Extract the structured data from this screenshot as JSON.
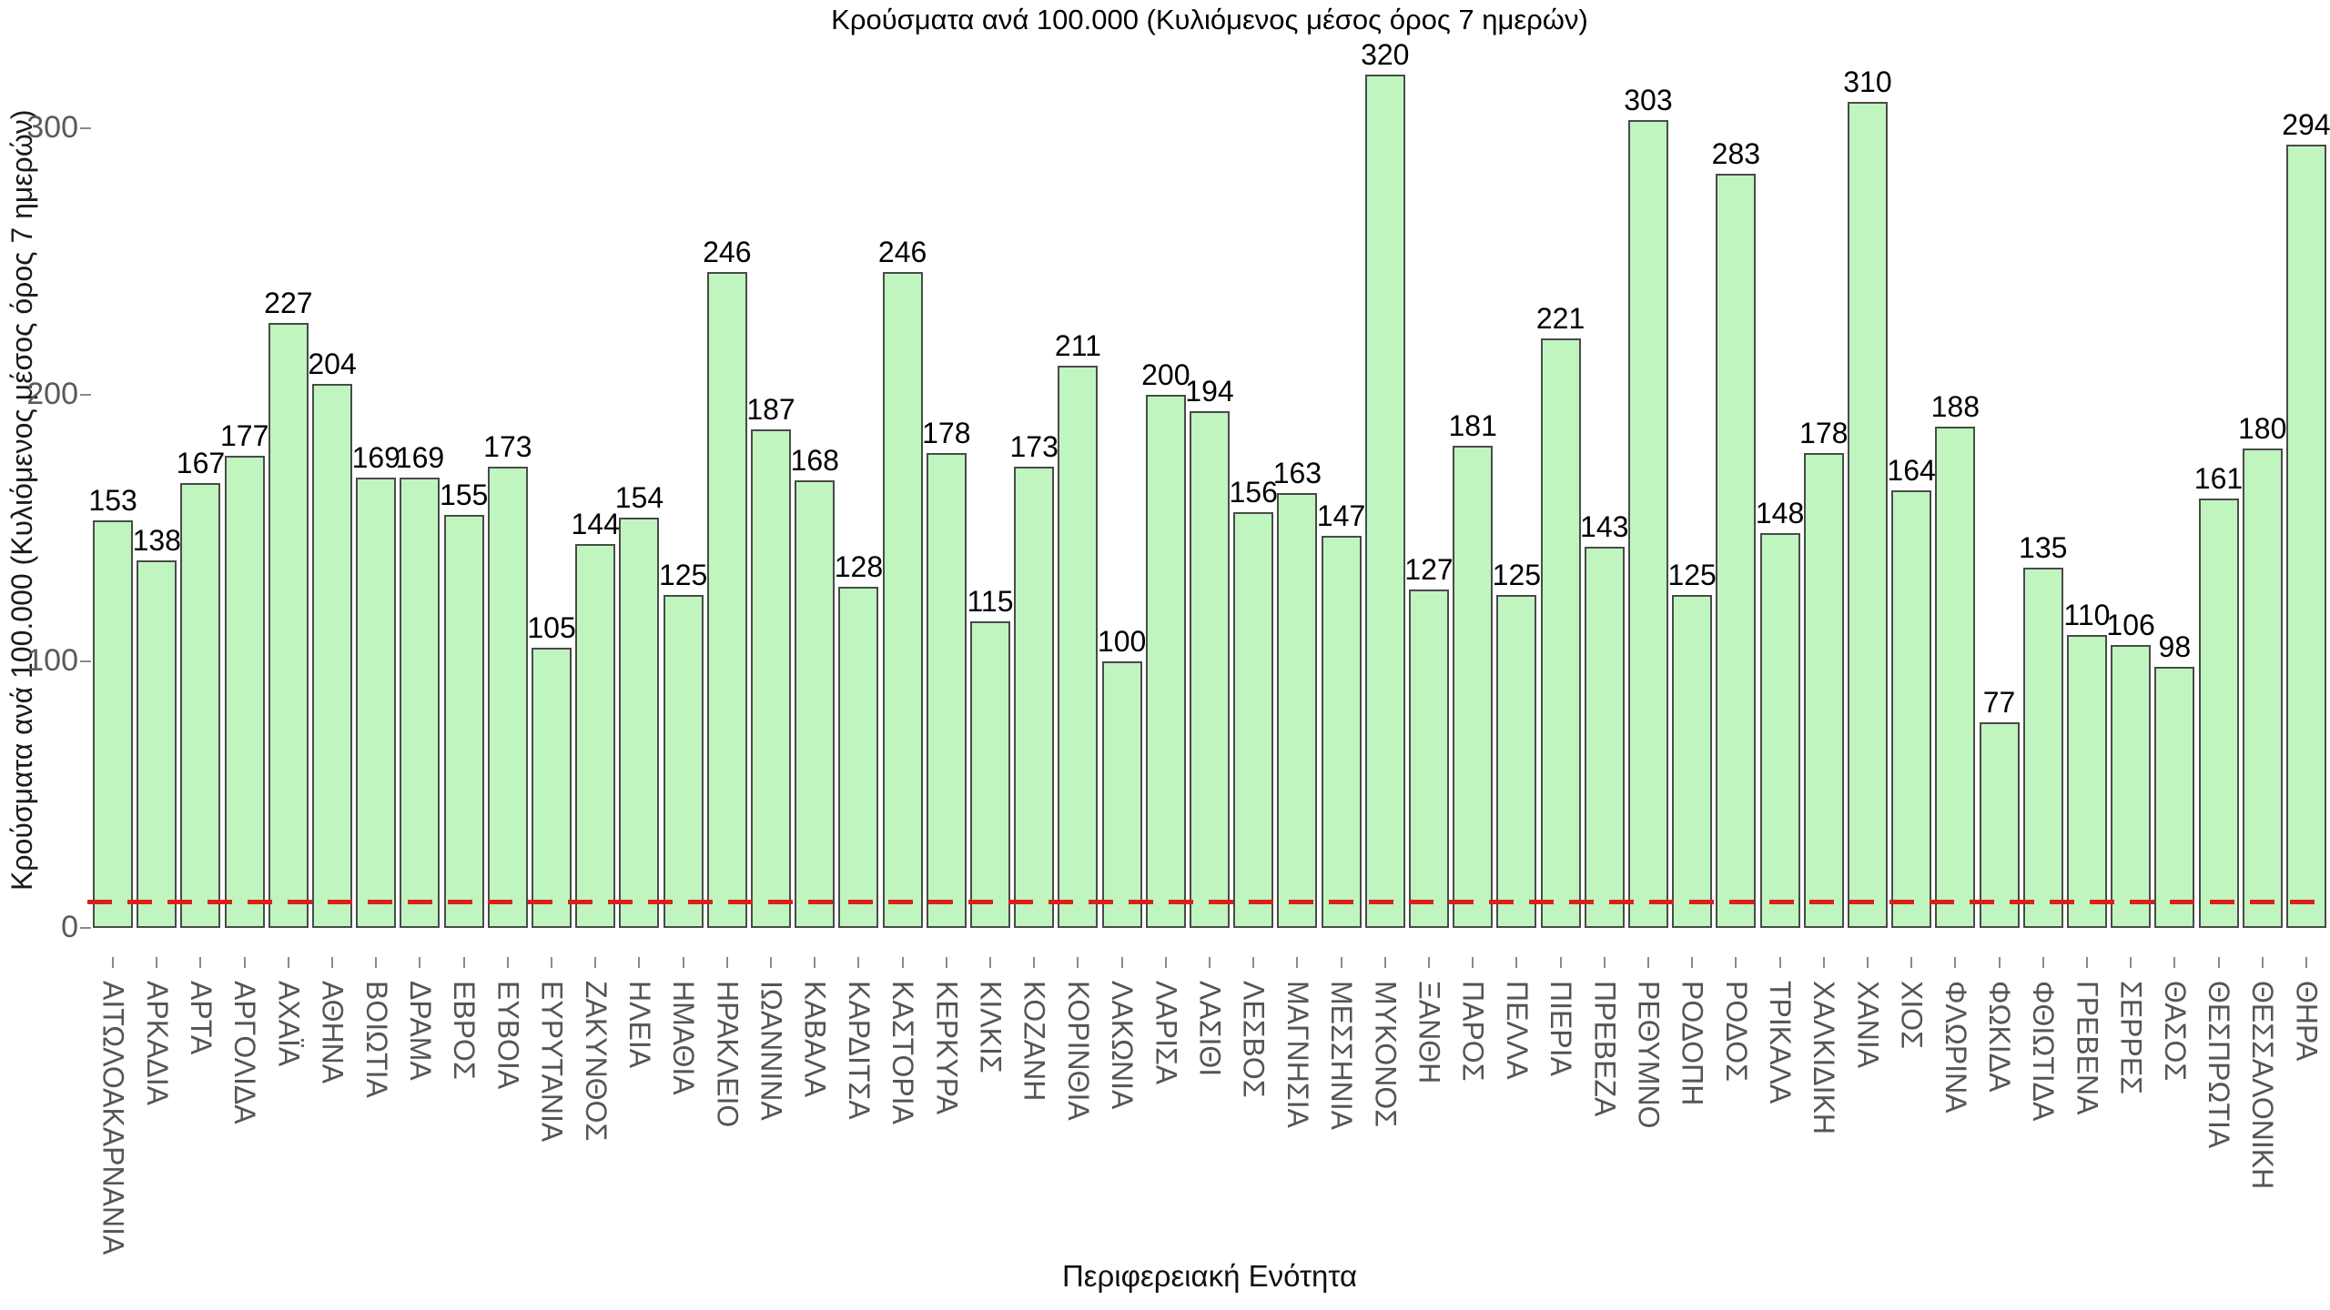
{
  "chart_data": {
    "type": "bar",
    "title": "Κρούσματα ανά 100.000 (Κυλιόμενος μέσος όρος 7 ημερών)",
    "xlabel": "Περιφερειακή Ενότητα",
    "ylabel": "Κρούσματα ανά 100.000 (Κυλιόμενος μέσος όρος 7 ημερών)",
    "categories": [
      "ΑΙΤΩΛΟΑΚΑΡΝΑΝΙΑ",
      "ΑΡΚΑΔΙΑ",
      "ΑΡΤΑ",
      "ΑΡΓΟΛΙΔΑ",
      "ΑΧΑΪΑ",
      "ΑΘΗΝΑ",
      "ΒΟΙΩΤΙΑ",
      "ΔΡΑΜΑ",
      "ΕΒΡΟΣ",
      "ΕΥΒΟΙΑ",
      "ΕΥΡΥΤΑΝΙΑ",
      "ΖΑΚΥΝΘΟΣ",
      "ΗΛΕΙΑ",
      "ΗΜΑΘΙΑ",
      "ΗΡΑΚΛΕΙΟ",
      "ΙΩΑΝΝΙΝΑ",
      "ΚΑΒΑΛΑ",
      "ΚΑΡΔΙΤΣΑ",
      "ΚΑΣΤΟΡΙΑ",
      "ΚΕΡΚΥΡΑ",
      "ΚΙΛΚΙΣ",
      "ΚΟΖΑΝΗ",
      "ΚΟΡΙΝΘΙΑ",
      "ΛΑΚΩΝΙΑ",
      "ΛΑΡΙΣΑ",
      "ΛΑΣΙΘΙ",
      "ΛΕΣΒΟΣ",
      "ΜΑΓΝΗΣΙΑ",
      "ΜΕΣΣΗΝΙΑ",
      "ΜΥΚΟΝΟΣ",
      "ΞΑΝΘΗ",
      "ΠΑΡΟΣ",
      "ΠΕΛΛΑ",
      "ΠΙΕΡΙΑ",
      "ΠΡΕΒΕΖΑ",
      "ΡΕΘΥΜΝΟ",
      "ΡΟΔΟΠΗ",
      "ΡΟΔΟΣ",
      "ΤΡΙΚΑΛΑ",
      "ΧΑΛΚΙΔΙΚΗ",
      "ΧΑΝΙΑ",
      "ΧΙΟΣ",
      "ΦΛΩΡΙΝΑ",
      "ΦΩΚΙΔΑ",
      "ΦΘΙΩΤΙΔΑ",
      "ΓΡΕΒΕΝΑ",
      "ΣΕΡΡΕΣ",
      "ΘΑΣΟΣ",
      "ΘΕΣΠΡΩΤΙΑ",
      "ΘΕΣΣΑΛΟΝΙΚΗ",
      "ΘΗΡΑ"
    ],
    "values": [
      153,
      138,
      167,
      177,
      227,
      204,
      169,
      169,
      155,
      173,
      105,
      144,
      154,
      125,
      246,
      187,
      168,
      128,
      246,
      178,
      115,
      173,
      211,
      100,
      200,
      194,
      156,
      163,
      147,
      320,
      127,
      181,
      125,
      221,
      143,
      303,
      125,
      283,
      148,
      178,
      310,
      164,
      188,
      77,
      135,
      110,
      106,
      98,
      161,
      180,
      294
    ],
    "ylim": [
      0,
      330
    ],
    "yticks": [
      0,
      100,
      200,
      300
    ],
    "grid": false,
    "legend": null,
    "bar_fill_color": "#c0f5c0",
    "bar_border_color": "#4a4a4a",
    "threshold_line": {
      "value": 10,
      "style": "dashed",
      "color": "#dd1f1a"
    }
  }
}
